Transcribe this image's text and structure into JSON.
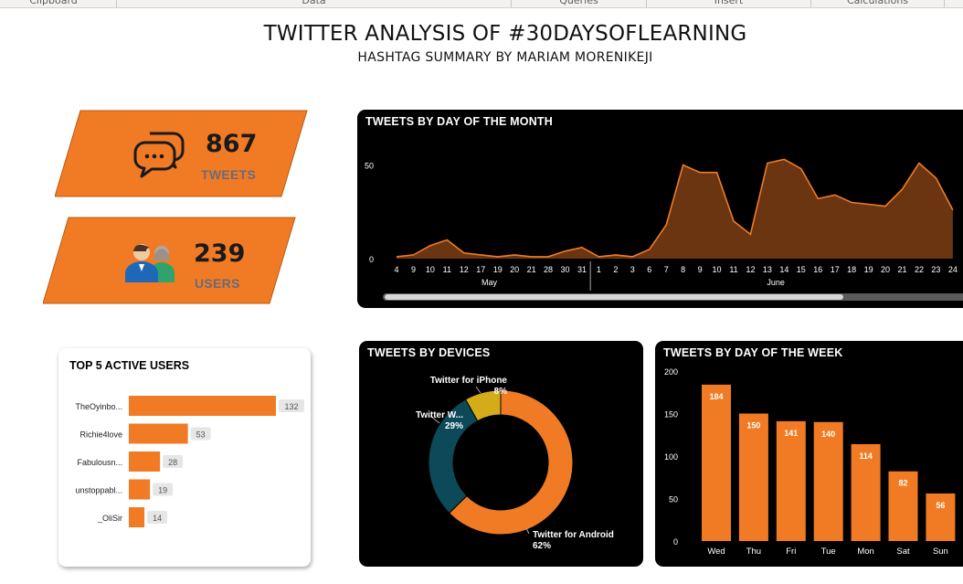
{
  "ribbon": {
    "groups": [
      "Clipboard",
      "Data",
      "Queries",
      "Insert",
      "Calculations"
    ]
  },
  "header": {
    "title": "TWITTER ANALYSIS OF #30DAYSOFLEARNING",
    "subtitle": "HASHTAG SUMMARY BY MARIAM MORENIKEJI"
  },
  "kpis": {
    "tweets": {
      "value": "867",
      "label": "TWEETS",
      "icon": "chat-bubbles-icon"
    },
    "users": {
      "value": "239",
      "label": "USERS",
      "icon": "users-icon"
    }
  },
  "colors": {
    "orange": "#F07B24",
    "dark_orange": "#6B3512",
    "teal": "#0C4A59",
    "gold": "#D4AC1A",
    "panel": "#000000"
  },
  "chart_data": [
    {
      "id": "tweets_by_day_of_month",
      "type": "area",
      "title": "TWEETS BY DAY OF THE MONTH",
      "categories": [
        "4",
        "9",
        "10",
        "11",
        "12",
        "17",
        "19",
        "20",
        "21",
        "28",
        "30",
        "31",
        "1",
        "2",
        "3",
        "6",
        "7",
        "8",
        "9",
        "10",
        "11",
        "12",
        "13",
        "14",
        "15",
        "16",
        "17",
        "18",
        "19",
        "20",
        "21",
        "22",
        "23",
        "24"
      ],
      "month_groups": [
        {
          "label": "May",
          "count": 12
        },
        {
          "label": "June",
          "count": 22
        }
      ],
      "values": [
        1,
        2,
        7,
        10,
        3,
        2,
        1,
        2,
        1,
        1,
        4,
        6,
        1,
        2,
        1,
        5,
        18,
        50,
        46,
        46,
        20,
        13,
        51,
        53,
        48,
        32,
        34,
        30,
        29,
        28,
        37,
        51,
        43,
        26
      ],
      "yticks": [
        0,
        50
      ],
      "ylim": [
        0,
        60
      ]
    },
    {
      "id": "top_5_active_users",
      "type": "bar",
      "orientation": "horizontal",
      "title": "TOP 5 ACTIVE USERS",
      "categories": [
        "TheOyinbo...",
        "Richie4love",
        "Fabulousn...",
        "unstoppabl...",
        "_OliSir"
      ],
      "values": [
        132,
        53,
        28,
        19,
        14
      ]
    },
    {
      "id": "tweets_by_devices",
      "type": "pie",
      "title": "TWEETS BY DEVICES",
      "labels": [
        "Twitter for Android",
        "Twitter W...",
        "Twitter for iPhone"
      ],
      "values": [
        62,
        29,
        8
      ],
      "value_labels": [
        "62%",
        "29%",
        "8%"
      ],
      "colors": [
        "#F07B24",
        "#0C4A59",
        "#D4AC1A"
      ],
      "donut": true
    },
    {
      "id": "tweets_by_day_of_week",
      "type": "bar",
      "title": "TWEETS BY DAY OF  THE WEEK",
      "categories": [
        "Wed",
        "Thu",
        "Fri",
        "Tue",
        "Mon",
        "Sat",
        "Sun"
      ],
      "values": [
        184,
        150,
        141,
        140,
        114,
        82,
        56
      ],
      "yticks": [
        0,
        50,
        100,
        150,
        200
      ],
      "ylim": [
        0,
        200
      ]
    }
  ]
}
